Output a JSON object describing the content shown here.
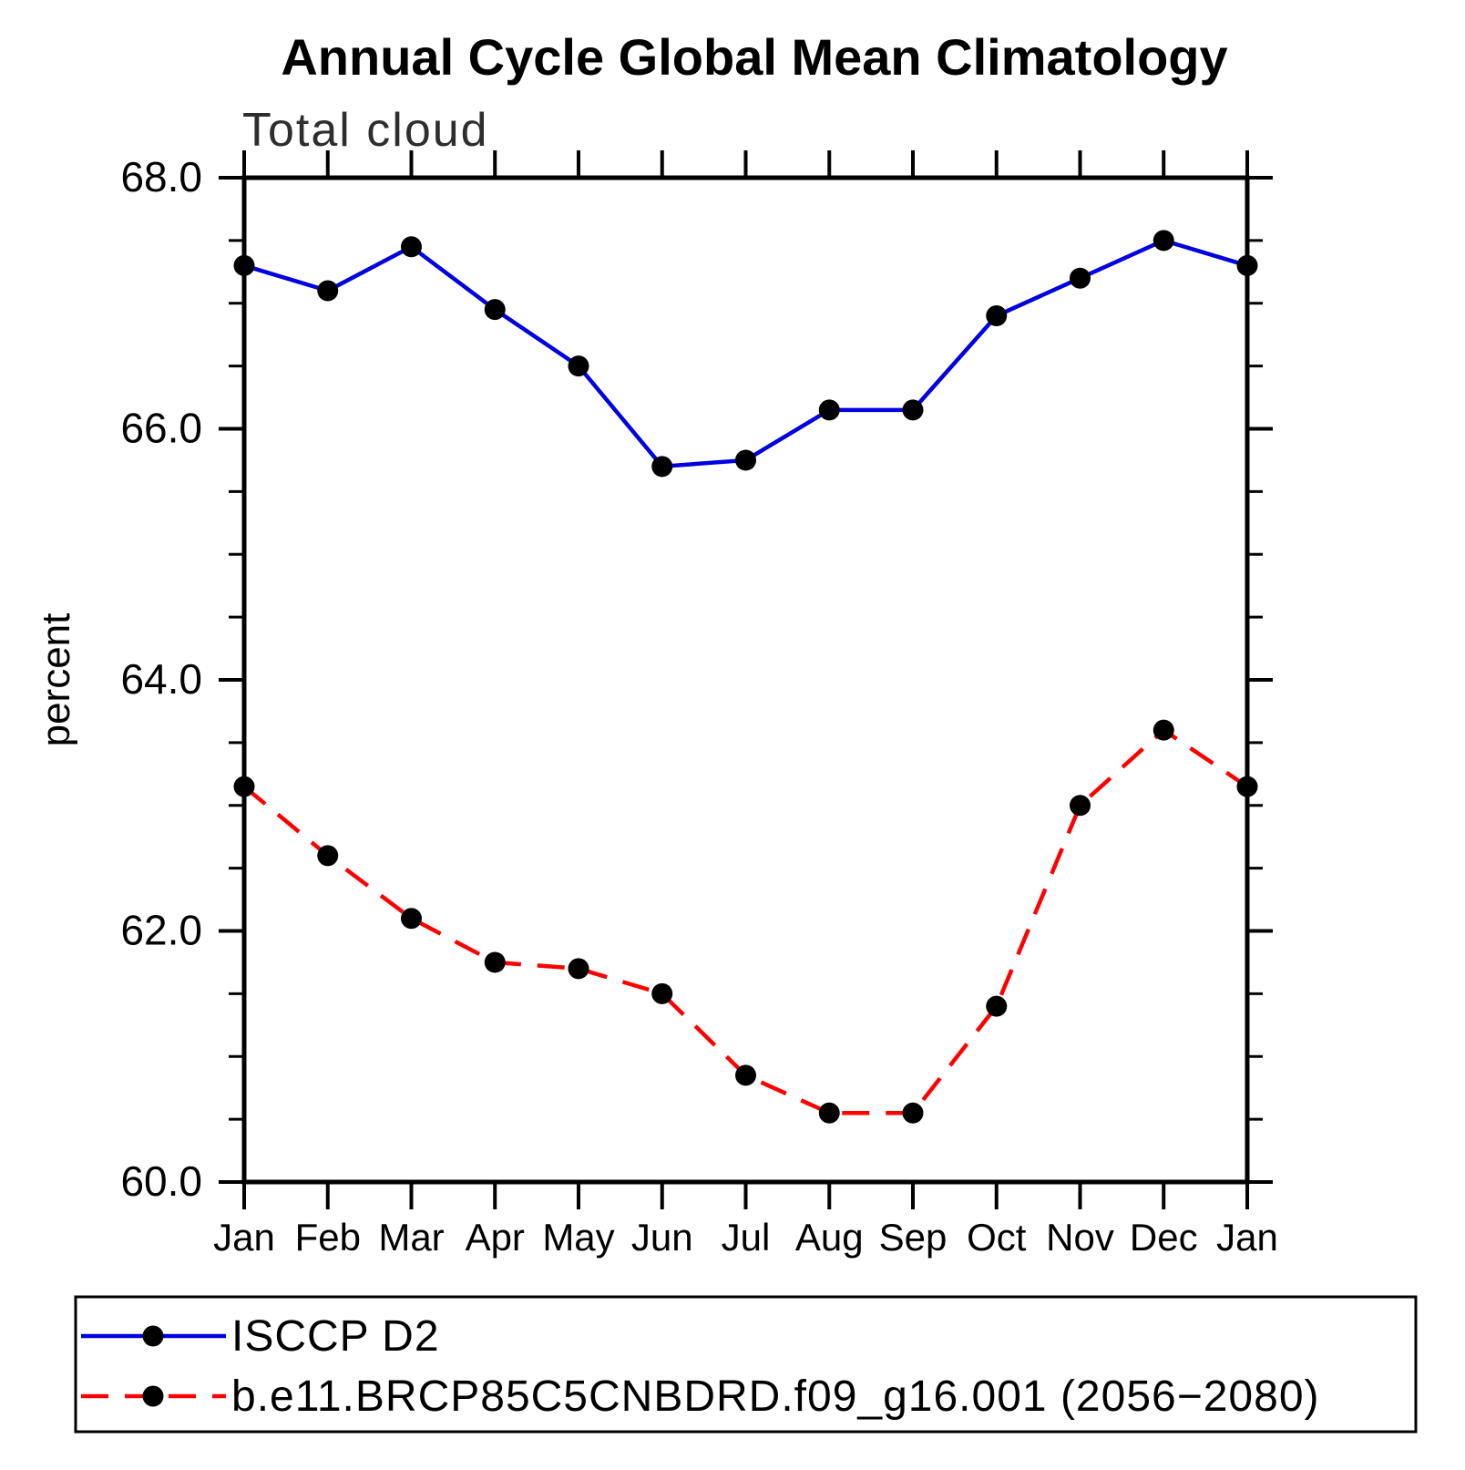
{
  "chart_data": {
    "type": "line",
    "title": "Annual Cycle Global Mean Climatology",
    "subtitle": "Total cloud",
    "ylabel": "percent",
    "categories": [
      "Jan",
      "Feb",
      "Mar",
      "Apr",
      "May",
      "Jun",
      "Jul",
      "Aug",
      "Sep",
      "Oct",
      "Nov",
      "Dec",
      "Jan"
    ],
    "ylim": [
      60.0,
      68.0
    ],
    "ytick_step": 2.0,
    "ytick_values": [
      68.0,
      66.0,
      64.0,
      62.0,
      60.0
    ],
    "ytick_labels": [
      "68.0",
      "66.0",
      "64.0",
      "62.0",
      "60.0"
    ],
    "minor_tick_step": 0.5,
    "grid": false,
    "legend_position": "bottom-left-box",
    "colors": {
      "axis": "#000000",
      "marker": "#000000",
      "title_text": "#000000",
      "subtitle_text": "#2e2e2e"
    },
    "series": [
      {
        "name": "ISCCP D2",
        "line_style": "solid",
        "color": "#0000e0",
        "marker": "filled-circle",
        "marker_color": "#000000",
        "values": [
          67.3,
          67.1,
          67.45,
          66.95,
          66.5,
          65.7,
          65.75,
          66.15,
          66.15,
          66.9,
          67.2,
          67.5,
          67.3
        ]
      },
      {
        "name": "b.e11.BRCP85C5CNBDRD.f09_g16.001 (2056−2080)",
        "line_style": "dashed",
        "color": "#ff0000",
        "marker": "filled-circle",
        "marker_color": "#000000",
        "values": [
          63.15,
          62.6,
          62.1,
          61.75,
          61.7,
          61.5,
          60.85,
          60.55,
          60.55,
          61.4,
          63.0,
          63.6,
          63.15
        ]
      }
    ]
  }
}
